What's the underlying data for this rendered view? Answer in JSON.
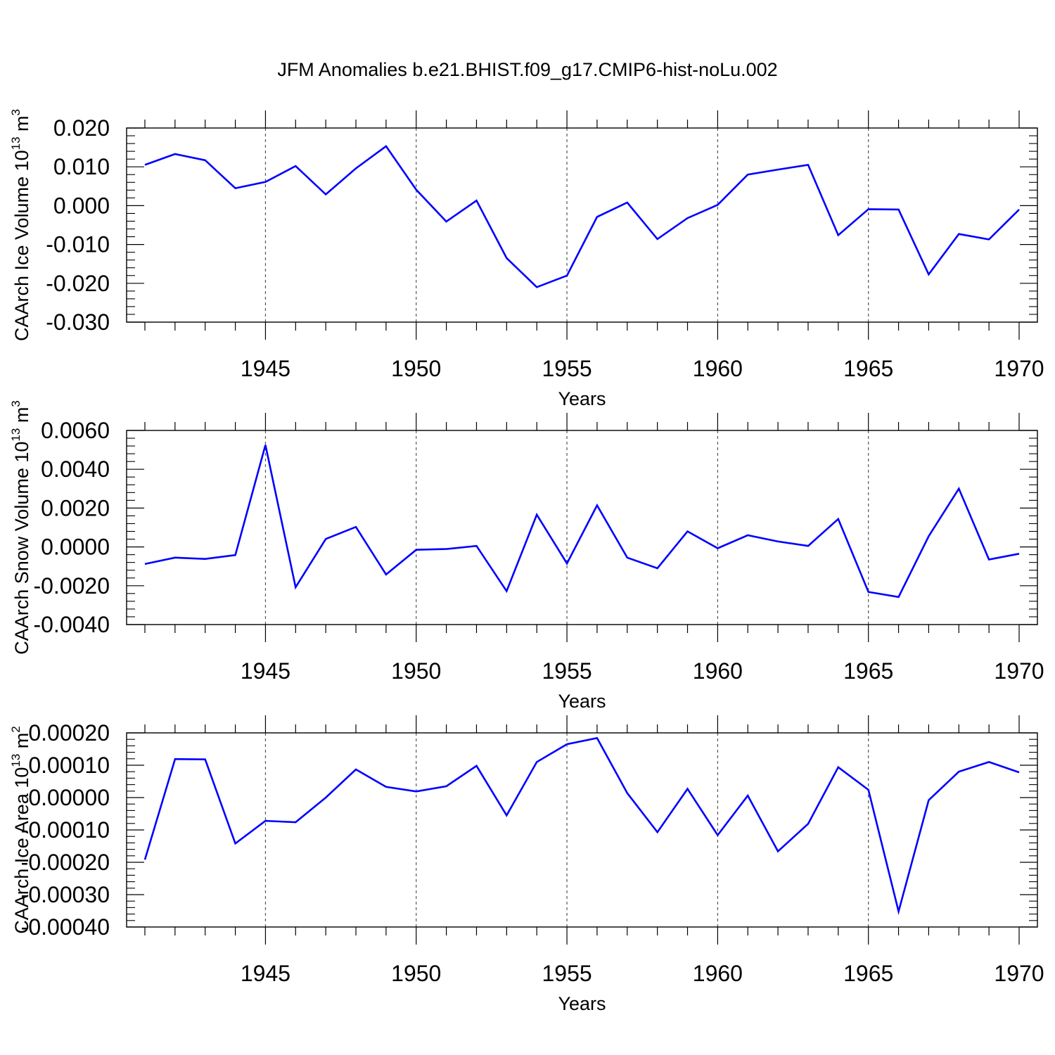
{
  "title": "JFM Anomalies b.e21.BHIST.f09_g17.CMIP6-hist-noLu.002",
  "chart_data": [
    {
      "type": "line",
      "title": "",
      "xlabel": "Years",
      "ylabel": "CAArch Ice Volume 10",
      "ylabel_exp": "13",
      "ylabel_unit": " m",
      "ylabel_unit_exp": "3",
      "xlim": [
        1941,
        1970
      ],
      "ylim": [
        -0.03,
        0.02
      ],
      "yticks": [
        -0.03,
        -0.02,
        -0.01,
        0.0,
        0.01,
        0.02
      ],
      "ytick_labels": [
        "-0.030",
        "-0.020",
        "-0.010",
        "0.000",
        "0.010",
        "0.020"
      ],
      "xticks": [
        1945,
        1950,
        1955,
        1960,
        1965,
        1970
      ],
      "xtick_labels": [
        "1945",
        "1950",
        "1955",
        "1960",
        "1965",
        "1970"
      ],
      "grid": "vertical dashed at major x ticks",
      "color": "#0000ff",
      "x": [
        1941,
        1942,
        1943,
        1944,
        1945,
        1946,
        1947,
        1948,
        1949,
        1950,
        1951,
        1952,
        1953,
        1954,
        1955,
        1956,
        1957,
        1958,
        1959,
        1960,
        1961,
        1962,
        1963,
        1964,
        1965,
        1966,
        1967,
        1968,
        1969,
        1970
      ],
      "y": [
        0.0105,
        0.0133,
        0.0117,
        0.0045,
        0.0061,
        0.0102,
        0.0029,
        0.0096,
        0.0153,
        0.0041,
        -0.0041,
        0.0013,
        -0.0135,
        -0.021,
        -0.018,
        -0.0029,
        0.0008,
        -0.0086,
        -0.0032,
        0.0002,
        0.008,
        0.0093,
        0.0105,
        -0.0076,
        -0.0009,
        -0.001,
        -0.0177,
        -0.0073,
        -0.0087,
        -0.001
      ]
    },
    {
      "type": "line",
      "title": "",
      "xlabel": "Years",
      "ylabel": "CAArch Snow Volume 10",
      "ylabel_exp": "13",
      "ylabel_unit": " m",
      "ylabel_unit_exp": "3",
      "xlim": [
        1941,
        1970
      ],
      "ylim": [
        -0.004,
        0.006
      ],
      "yticks": [
        -0.004,
        -0.002,
        0.0,
        0.002,
        0.004,
        0.006
      ],
      "ytick_labels": [
        "-0.0040",
        "-0.0020",
        "0.0000",
        "0.0020",
        "0.0040",
        "0.0060"
      ],
      "xticks": [
        1945,
        1950,
        1955,
        1960,
        1965,
        1970
      ],
      "xtick_labels": [
        "1945",
        "1950",
        "1955",
        "1960",
        "1965",
        "1970"
      ],
      "grid": "vertical dashed at major x ticks",
      "color": "#0000ff",
      "x": [
        1941,
        1942,
        1943,
        1944,
        1945,
        1946,
        1947,
        1948,
        1949,
        1950,
        1951,
        1952,
        1953,
        1954,
        1955,
        1956,
        1957,
        1958,
        1959,
        1960,
        1961,
        1962,
        1963,
        1964,
        1965,
        1966,
        1967,
        1968,
        1969,
        1970
      ],
      "y": [
        -0.00088,
        -0.00055,
        -0.00062,
        -0.00042,
        0.00525,
        -0.00208,
        0.00041,
        0.00103,
        -0.00142,
        -0.00015,
        -0.00011,
        5e-05,
        -0.00228,
        0.00166,
        -0.00085,
        0.00214,
        -0.00055,
        -0.0011,
        0.0008,
        -7e-05,
        0.0006,
        0.00028,
        5e-05,
        0.00144,
        -0.00232,
        -0.00258,
        0.00055,
        0.003,
        -0.00065,
        -0.00035
      ]
    },
    {
      "type": "line",
      "title": "",
      "xlabel": "Years",
      "ylabel": "CAArch Ice Area 10",
      "ylabel_exp": "13",
      "ylabel_unit": " m",
      "ylabel_unit_exp": "2",
      "xlim": [
        1941,
        1970
      ],
      "ylim": [
        -0.0004,
        0.0002
      ],
      "yticks": [
        -0.0004,
        -0.0003,
        -0.0002,
        -0.0001,
        0.0,
        0.0001,
        0.0002
      ],
      "ytick_labels": [
        "-0.00040",
        "-0.00030",
        "-0.00020",
        "-0.00010",
        "0.00000",
        "0.00010",
        "0.00020"
      ],
      "xticks": [
        1945,
        1950,
        1955,
        1960,
        1965,
        1970
      ],
      "xtick_labels": [
        "1945",
        "1950",
        "1955",
        "1960",
        "1965",
        "1970"
      ],
      "grid": "vertical dashed at major x ticks",
      "color": "#0000ff",
      "x": [
        1941,
        1942,
        1943,
        1944,
        1945,
        1946,
        1947,
        1948,
        1949,
        1950,
        1951,
        1952,
        1953,
        1954,
        1955,
        1956,
        1957,
        1958,
        1959,
        1960,
        1961,
        1962,
        1963,
        1964,
        1965,
        1966,
        1967,
        1968,
        1969,
        1970
      ],
      "y": [
        -0.000192,
        0.000119,
        0.000118,
        -0.000142,
        -7.2e-05,
        -7.6e-05,
        0.0,
        8.7e-05,
        3.3e-05,
        1.9e-05,
        3.5e-05,
        9.8e-05,
        -5.5e-05,
        0.00011,
        0.000165,
        0.000184,
        1.4e-05,
        -0.000107,
        2.7e-05,
        -0.000116,
        6e-06,
        -0.000166,
        -8.1e-05,
        9.4e-05,
        2.4e-05,
        -0.000352,
        -8e-06,
        8e-05,
        0.00011,
        7.8e-05
      ]
    }
  ]
}
